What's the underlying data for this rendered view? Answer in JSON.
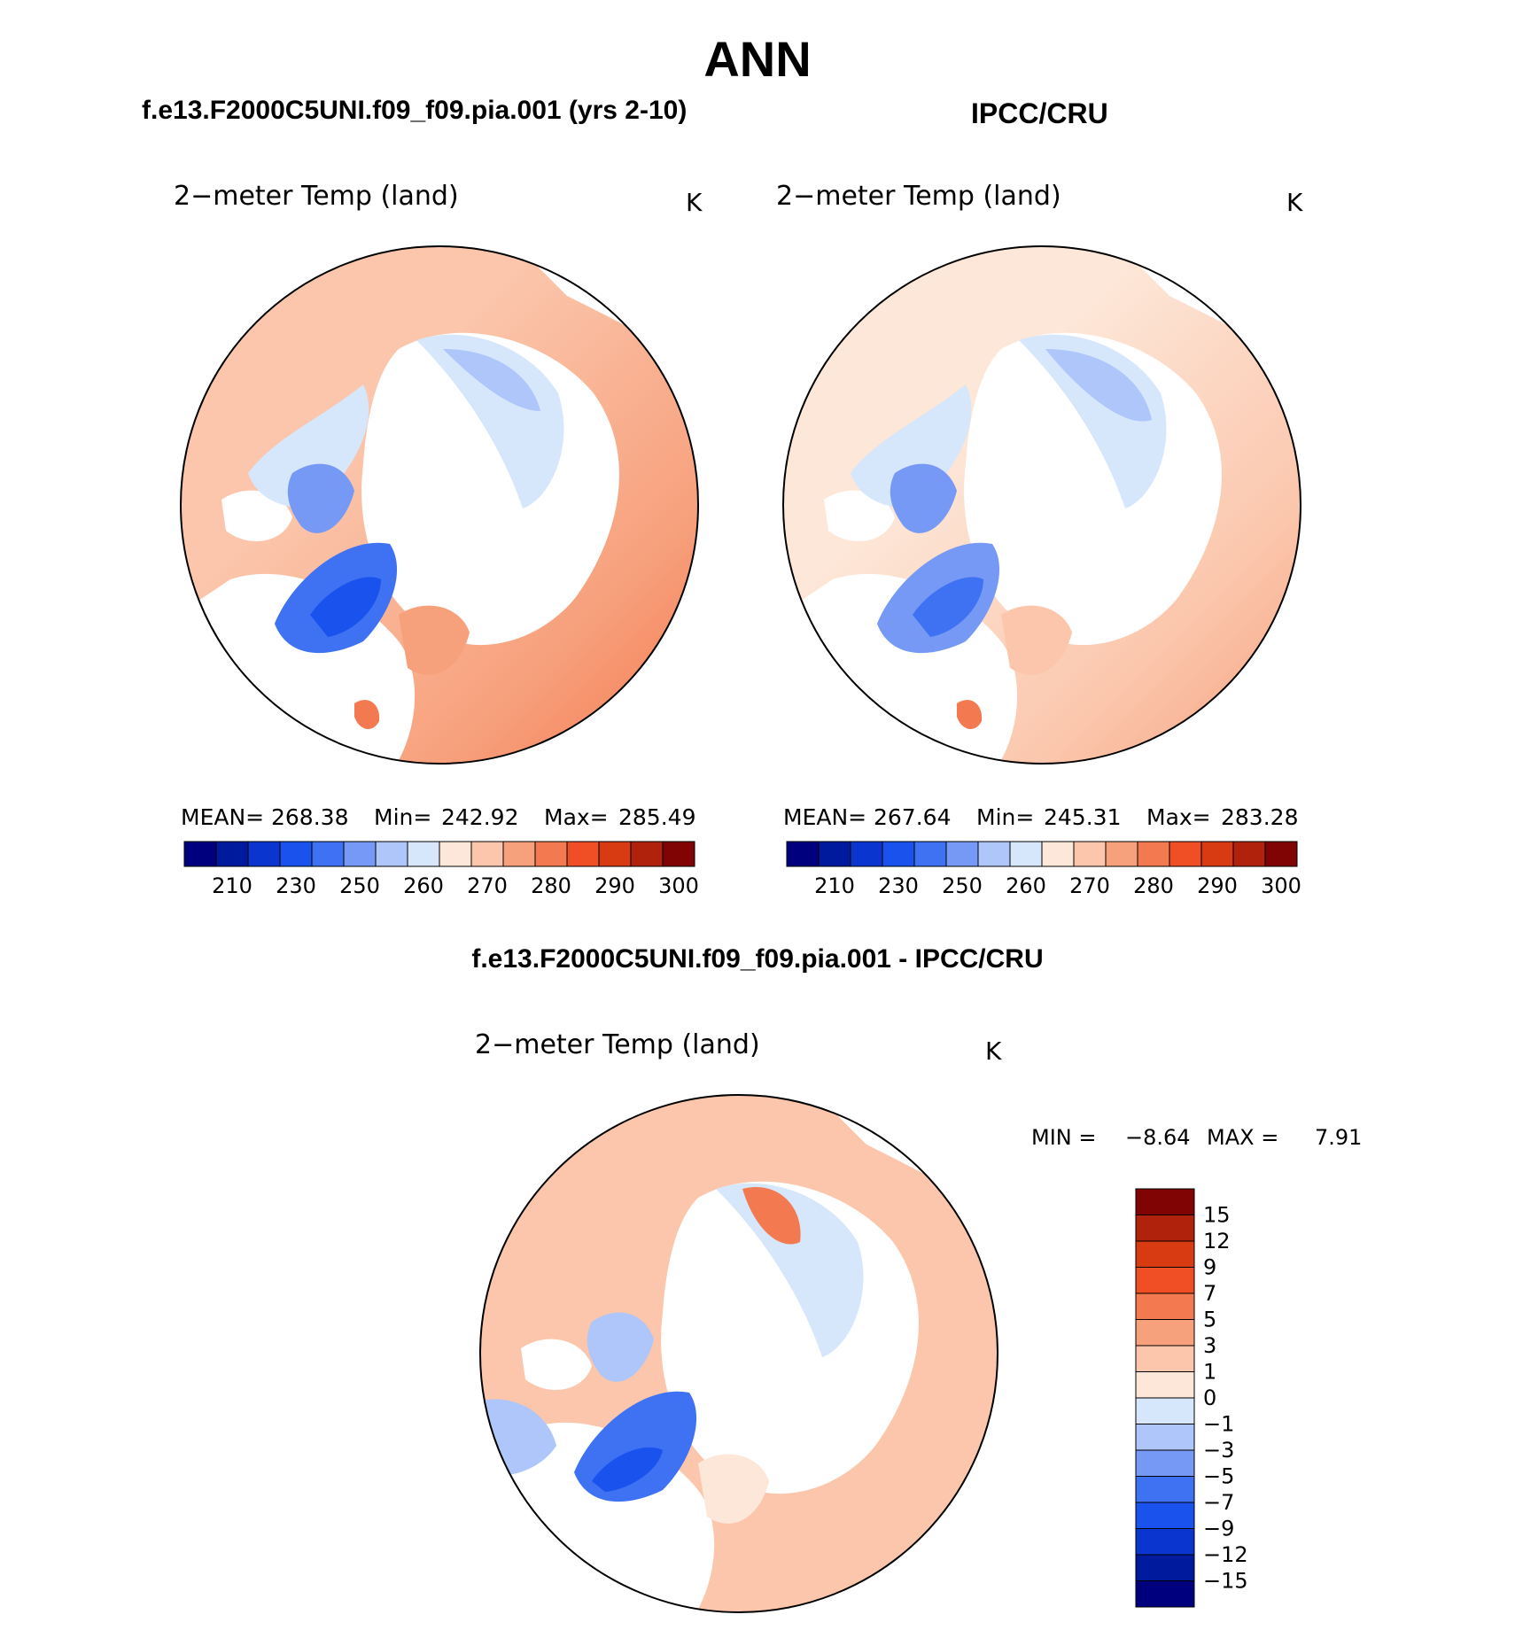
{
  "page": {
    "title": "ANN",
    "difference_title": "f.e13.F2000C5UNI.f09_f09.pia.001 - IPCC/CRU"
  },
  "panels": [
    {
      "id": "model",
      "case_title": "f.e13.F2000C5UNI.f09_f09.pia.001 (yrs 2-10)",
      "variable": "2−meter Temp (land)",
      "units": "K",
      "stats": {
        "mean_label": "MEAN=",
        "mean": "268.38",
        "min_label": "Min=",
        "min": "242.92",
        "max_label": "Max=",
        "max": "285.49"
      }
    },
    {
      "id": "obs",
      "case_title": "IPCC/CRU",
      "variable": "2−meter Temp (land)",
      "units": "K",
      "stats": {
        "mean_label": "MEAN=",
        "mean": "267.64",
        "min_label": "Min=",
        "min": "245.31",
        "max_label": "Max=",
        "max": "283.28"
      }
    },
    {
      "id": "diff",
      "variable": "2−meter Temp (land)",
      "units": "K",
      "stats": {
        "min_label": "MIN =",
        "min": "−8.64",
        "max_label": "MAX =",
        "max": "7.91"
      }
    }
  ],
  "abs_colorbar": {
    "colors": [
      "#00007f",
      "#001a9e",
      "#0a35cf",
      "#1a52ee",
      "#3f72f2",
      "#7699f6",
      "#aec6f9",
      "#d6e6fb",
      "#fde7d8",
      "#fbc6ac",
      "#f7a07c",
      "#f37a50",
      "#f04e25",
      "#d83a12",
      "#b0220b",
      "#810405"
    ],
    "labels": [
      "210",
      "230",
      "250",
      "260",
      "270",
      "280",
      "290",
      "300"
    ]
  },
  "diff_colorbar": {
    "colors": [
      "#810405",
      "#b0220b",
      "#d83a12",
      "#f04e25",
      "#f37a50",
      "#f7a07c",
      "#fbc6ac",
      "#fde7d8",
      "#d6e6fb",
      "#aec6f9",
      "#7699f6",
      "#3f72f2",
      "#1a52ee",
      "#0a35cf",
      "#001a9e",
      "#00007f"
    ],
    "labels": [
      "15",
      "12",
      "9",
      "7",
      "5",
      "3",
      "1",
      "0",
      "−1",
      "−3",
      "−5",
      "−7",
      "−9",
      "−12",
      "−15"
    ]
  }
}
